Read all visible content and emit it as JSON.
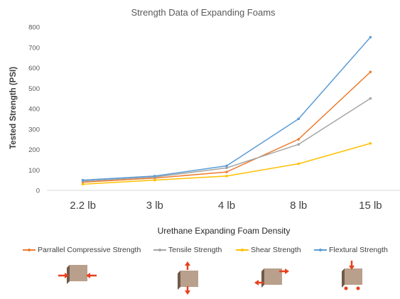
{
  "chart_data": {
    "type": "line",
    "title": "Strength Data of Expanding Foams",
    "xlabel": "Urethane Expanding Foam Density",
    "ylabel": "Tested Strength (PSI)",
    "categories": [
      "2.2 lb",
      "3 lb",
      "4 lb",
      "8 lb",
      "15 lb"
    ],
    "ylim": [
      0,
      800
    ],
    "yticks": [
      "0",
      "100",
      "200",
      "300",
      "400",
      "500",
      "600",
      "700",
      "800"
    ],
    "grid": false,
    "legend_position": "bottom",
    "series": [
      {
        "name": "Parrallel Compressive Strength",
        "color": "#ED7D31",
        "values": [
          40,
          60,
          90,
          250,
          580
        ]
      },
      {
        "name": "Tensile Strength",
        "color": "#A5A5A5",
        "values": [
          45,
          65,
          110,
          225,
          450
        ]
      },
      {
        "name": "Shear Strength",
        "color": "#FFC000",
        "values": [
          30,
          50,
          70,
          130,
          230
        ]
      },
      {
        "name": "Flextural Strength",
        "color": "#5B9BD5",
        "values": [
          50,
          70,
          120,
          350,
          750
        ]
      }
    ],
    "icons": [
      {
        "name": "compression-diagram-icon",
        "arrow_color": "#E8401C",
        "block_color": "#B9A08C"
      },
      {
        "name": "tension-diagram-icon",
        "arrow_color": "#E8401C",
        "block_color": "#B9A08C"
      },
      {
        "name": "shear-diagram-icon",
        "arrow_color": "#E8401C",
        "block_color": "#B9A08C"
      },
      {
        "name": "flexure-diagram-icon",
        "arrow_color": "#E8401C",
        "block_color": "#B9A08C"
      }
    ]
  }
}
